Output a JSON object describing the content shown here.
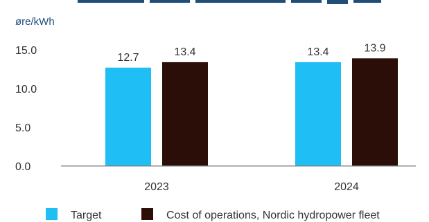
{
  "chart_data": {
    "type": "bar",
    "unit_label": "øre/kWh",
    "categories": [
      "2023",
      "2024"
    ],
    "series": [
      {
        "name": "Target",
        "values": [
          12.7,
          13.4
        ],
        "color": "#1fbef5"
      },
      {
        "name": "Cost of operations, Nordic hydropower fleet",
        "values": [
          13.4,
          13.9
        ],
        "color": "#2a0e07"
      }
    ],
    "data_labels": [
      [
        "12.7",
        "13.4"
      ],
      [
        "13.4",
        "13.9"
      ]
    ],
    "ylim": [
      0,
      15
    ],
    "yticks": [
      0,
      5,
      10,
      15
    ],
    "ytick_labels": [
      "0.0",
      "5.0",
      "10.0",
      "15.0"
    ],
    "legend_position": "bottom",
    "grid": false
  }
}
